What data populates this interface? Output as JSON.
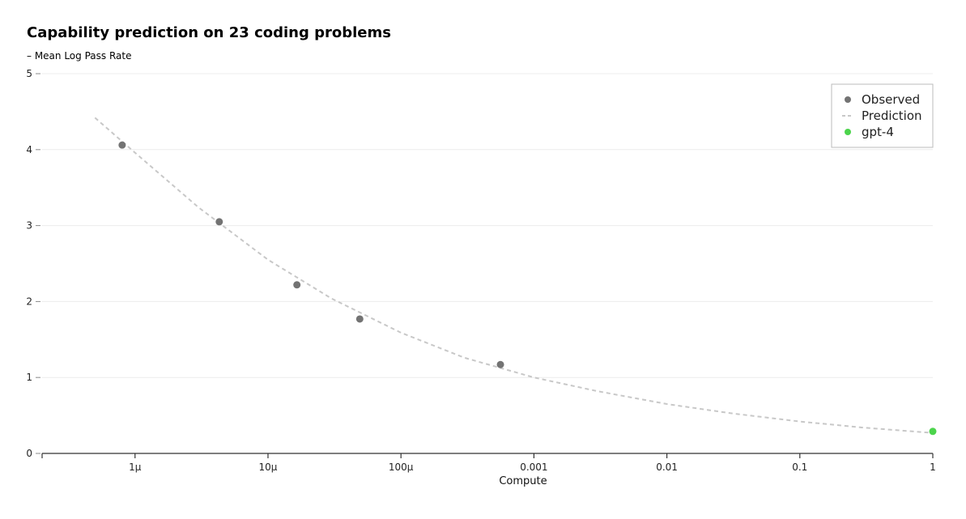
{
  "chart_data": {
    "type": "scatter",
    "title": "Capability prediction on 23 coding problems",
    "subtitle": "– Mean Log Pass Rate",
    "xlabel": "Compute",
    "x_scale": "log",
    "xlim": [
      2e-07,
      1
    ],
    "ylim": [
      0,
      5
    ],
    "x_ticks": [
      {
        "value": 1e-06,
        "label": "1μ"
      },
      {
        "value": 1e-05,
        "label": "10μ"
      },
      {
        "value": 0.0001,
        "label": "100μ"
      },
      {
        "value": 0.001,
        "label": "0.001"
      },
      {
        "value": 0.01,
        "label": "0.01"
      },
      {
        "value": 0.1,
        "label": "0.1"
      },
      {
        "value": 1,
        "label": "1"
      }
    ],
    "y_ticks": [
      0,
      1,
      2,
      3,
      4,
      5
    ],
    "grid": "horizontal",
    "legend_position": "top-right",
    "series": [
      {
        "name": "Observed",
        "kind": "points",
        "color": "#737373",
        "x": [
          8e-07,
          4.3e-06,
          1.65e-05,
          4.9e-05,
          0.00056
        ],
        "y": [
          4.06,
          3.05,
          2.22,
          1.77,
          1.17
        ]
      },
      {
        "name": "Prediction",
        "kind": "dashed-line",
        "color": "#c8c8c8",
        "x": [
          5e-07,
          1e-06,
          3e-06,
          1e-05,
          3e-05,
          0.0001,
          0.0003,
          0.001,
          0.003,
          0.01,
          0.03,
          0.1,
          0.3,
          1
        ],
        "y": [
          4.42,
          3.96,
          3.24,
          2.55,
          2.04,
          1.59,
          1.26,
          1.0,
          0.82,
          0.65,
          0.53,
          0.42,
          0.34,
          0.27
        ]
      },
      {
        "name": "gpt-4",
        "kind": "points",
        "color": "#4cd44c",
        "x": [
          1
        ],
        "y": [
          0.29
        ]
      }
    ]
  }
}
